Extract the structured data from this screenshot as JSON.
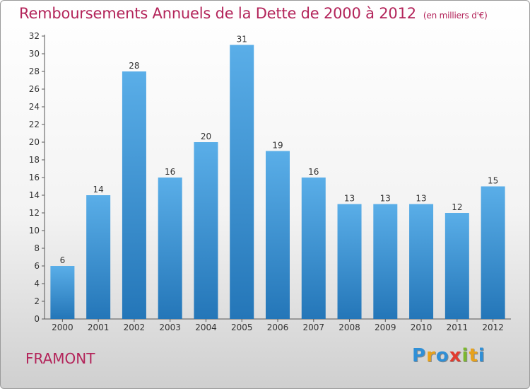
{
  "title": "Remboursements Annuels de la Dette de 2000 à 2012",
  "subtitle": "(en milliers d'€)",
  "commune": "FRAMONT",
  "logo": {
    "letters": [
      "P",
      "r",
      "o",
      "x",
      "i",
      "t",
      "i"
    ],
    "colors": [
      "#2f8fd6",
      "#e8a21b",
      "#2f8fd6",
      "#e23b2e",
      "#7cb82f",
      "#e8a21b",
      "#2f8fd6"
    ]
  },
  "colors": {
    "bar_light": "#5aaee8",
    "bar_dark": "#2476b8",
    "title": "#b3245a"
  },
  "chart_data": {
    "type": "bar",
    "categories": [
      "2000",
      "2001",
      "2002",
      "2003",
      "2004",
      "2005",
      "2006",
      "2007",
      "2008",
      "2009",
      "2010",
      "2011",
      "2012"
    ],
    "values": [
      6,
      14,
      28,
      16,
      20,
      31,
      19,
      16,
      13,
      13,
      13,
      12,
      15
    ],
    "ylim": [
      0,
      32
    ],
    "yticks": [
      0,
      2,
      4,
      6,
      8,
      10,
      12,
      14,
      16,
      18,
      20,
      22,
      24,
      26,
      28,
      30,
      32
    ],
    "grid": false
  }
}
